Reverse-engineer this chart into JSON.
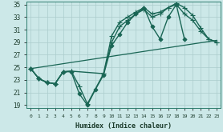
{
  "title": "",
  "xlabel": "Humidex (Indice chaleur)",
  "bg_color": "#cce8e8",
  "line_color": "#1a6655",
  "grid_color": "#aacccc",
  "xlim": [
    -0.5,
    23.5
  ],
  "ylim": [
    18.5,
    35.5
  ],
  "xticks": [
    0,
    1,
    2,
    3,
    4,
    5,
    6,
    7,
    8,
    9,
    10,
    11,
    12,
    13,
    14,
    15,
    16,
    17,
    18,
    19,
    20,
    21,
    22,
    23
  ],
  "yticks": [
    19,
    21,
    23,
    25,
    27,
    29,
    31,
    33,
    35
  ],
  "lines": [
    {
      "x": [
        0,
        1,
        2,
        3,
        4,
        5,
        6,
        7,
        8,
        9,
        10,
        11,
        12,
        13,
        14,
        15,
        16,
        17,
        18,
        19
      ],
      "y": [
        24.8,
        23.2,
        22.6,
        22.4,
        24.3,
        24.3,
        20.8,
        19.0,
        21.5,
        23.8,
        28.5,
        30.3,
        32.2,
        33.5,
        34.5,
        31.5,
        29.5,
        33.0,
        35.0,
        29.5
      ],
      "marker": "D",
      "markersize": 2.5,
      "linewidth": 1.0
    },
    {
      "x": [
        0,
        1,
        2,
        3,
        4,
        5,
        6,
        7,
        9,
        10,
        11,
        12,
        13,
        14,
        15,
        16,
        17,
        18,
        19,
        20,
        21,
        22,
        23
      ],
      "y": [
        24.8,
        23.2,
        22.6,
        22.4,
        24.3,
        24.4,
        22.0,
        19.2,
        24.0,
        30.0,
        32.2,
        33.0,
        33.8,
        34.5,
        33.5,
        33.8,
        34.5,
        35.2,
        34.5,
        33.3,
        31.3,
        29.5,
        29.0
      ],
      "marker": "+",
      "markersize": 4,
      "linewidth": 1.0
    },
    {
      "x": [
        0,
        23
      ],
      "y": [
        24.8,
        29.3
      ],
      "marker": null,
      "markersize": 0,
      "linewidth": 0.9
    },
    {
      "x": [
        0,
        1,
        2,
        3,
        4,
        5,
        9,
        10,
        11,
        12,
        13,
        14,
        15,
        16,
        17,
        18,
        19,
        20,
        21,
        22,
        23
      ],
      "y": [
        24.8,
        23.2,
        22.6,
        22.4,
        24.3,
        24.4,
        24.0,
        29.0,
        31.5,
        32.5,
        33.5,
        34.2,
        33.0,
        33.5,
        34.5,
        35.0,
        33.5,
        32.5,
        30.8,
        29.5,
        29.0
      ],
      "marker": "+",
      "markersize": 4,
      "linewidth": 1.0
    }
  ]
}
